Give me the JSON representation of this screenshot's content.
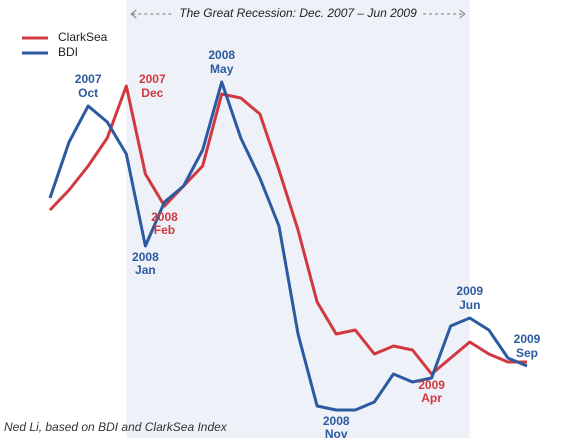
{
  "chart_data": {
    "type": "line",
    "title": "The Great Recession: Dec. 2007 – Jun 2009",
    "source": "Ned Li, based on BDI and ClarkSea Index",
    "categories": [
      null,
      null,
      null,
      null,
      null,
      null,
      null,
      null,
      null,
      null,
      null,
      null,
      null,
      null,
      null,
      null,
      null,
      null,
      null,
      null,
      null,
      null,
      null,
      null,
      null,
      null
    ],
    "shade": {
      "from": 4,
      "to": 22,
      "color": "#eef2f8"
    },
    "ylim": [
      0,
      100
    ],
    "legend": "top-left",
    "series": [
      {
        "name": "ClarkSea",
        "color": "#d2383f",
        "values": [
          55,
          60,
          66,
          73,
          86,
          64,
          56,
          61,
          66,
          84,
          83,
          79,
          65,
          50,
          32,
          24,
          25,
          19,
          21,
          20,
          14,
          18,
          22,
          19,
          17,
          17
        ]
      },
      {
        "name": "BDI",
        "color": "#2b5aa0",
        "values": [
          58,
          72,
          81,
          77,
          69,
          46,
          57,
          61,
          70,
          87,
          73,
          63,
          51,
          24,
          6,
          5,
          5,
          7,
          14,
          12,
          13,
          26,
          28,
          25,
          18,
          16
        ]
      }
    ],
    "annotations": [
      {
        "series": 1,
        "index": 2,
        "position": "above",
        "text": [
          "2007",
          "Oct"
        ]
      },
      {
        "series": 0,
        "index": 4,
        "position": "right",
        "text": [
          "2007",
          "Dec"
        ]
      },
      {
        "series": 1,
        "index": 5,
        "position": "below",
        "text": [
          "2008",
          "Jan"
        ]
      },
      {
        "series": 0,
        "index": 6,
        "position": "below",
        "text": [
          "2008",
          "Feb"
        ]
      },
      {
        "series": 1,
        "index": 9,
        "position": "above",
        "text": [
          "2008",
          "May"
        ]
      },
      {
        "series": 1,
        "index": 15,
        "position": "below",
        "text": [
          "2008",
          "Nov"
        ]
      },
      {
        "series": 0,
        "index": 20,
        "position": "below",
        "text": [
          "2009",
          "Apr"
        ]
      },
      {
        "series": 1,
        "index": 22,
        "position": "above",
        "text": [
          "2009",
          "Jun"
        ]
      },
      {
        "series": 1,
        "index": 25,
        "position": "above",
        "text": [
          "2009",
          "Sep"
        ]
      }
    ]
  }
}
